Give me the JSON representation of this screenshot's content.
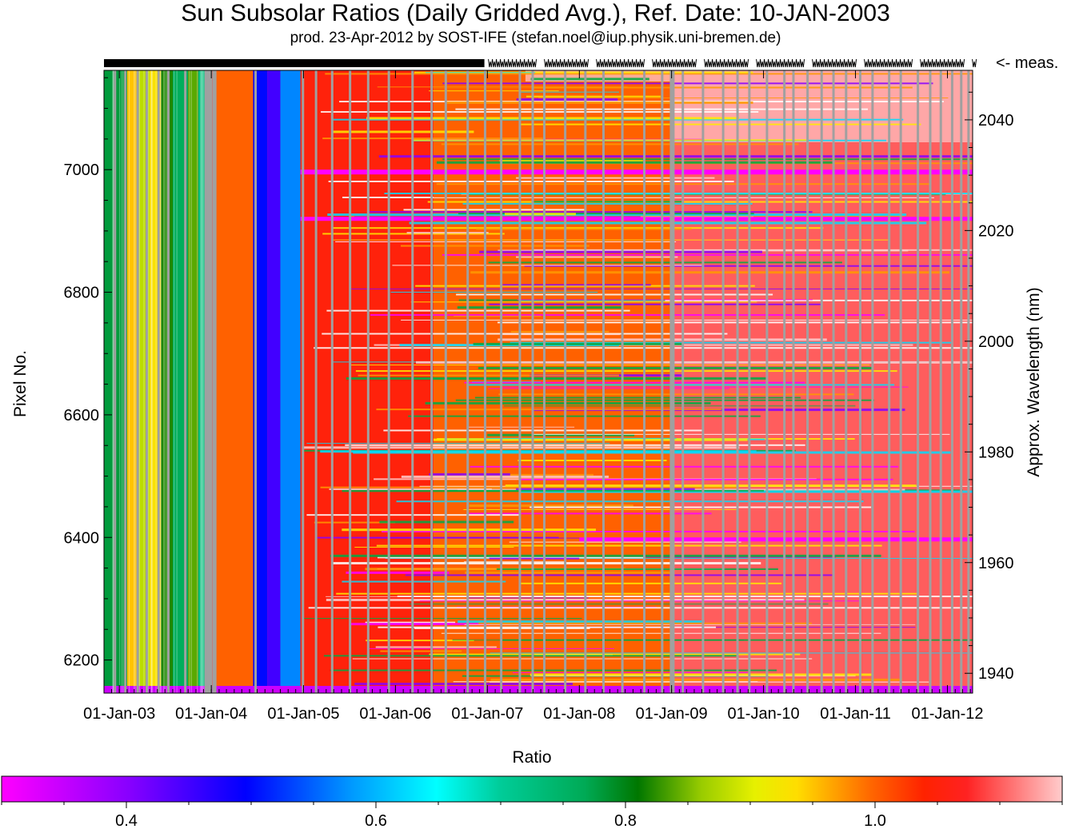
{
  "title": "Sun Subsolar Ratios (Daily Gridded Avg.), Ref. Date: 10-JAN-2003",
  "subtitle": "prod. 23-Apr-2012 by SOST-IFE (stefan.noel@iup.physik.uni-bremen.de)",
  "meas_label": "<- meas.",
  "chart_data": {
    "type": "heatmap",
    "xlabel": "",
    "ylabel": "Pixel No.",
    "y2label": "Approx. Wavelength (nm)",
    "x_ticks": [
      "01-Jan-03",
      "01-Jan-04",
      "01-Jan-05",
      "01-Jan-06",
      "01-Jan-07",
      "01-Jan-08",
      "01-Jan-09",
      "01-Jan-10",
      "01-Jan-11",
      "01-Jan-12"
    ],
    "x_range": [
      "2002-11-01",
      "2012-04-10"
    ],
    "y_ticks": [
      6200,
      6400,
      6600,
      6800,
      7000
    ],
    "y_range": [
      6146,
      7162
    ],
    "y2_ticks": [
      1940,
      1960,
      1980,
      2000,
      2020,
      2040
    ],
    "colorbar": {
      "label": "Ratio",
      "range": [
        0.3,
        1.15
      ],
      "ticks": [
        "0.4",
        "0.6",
        "0.8",
        "1.0"
      ],
      "tick_values": [
        0.4,
        0.6,
        0.8,
        1.0
      ]
    },
    "time_bands": [
      {
        "start": "2002-11-01",
        "end": "2003-02-01",
        "ratio": 0.78
      },
      {
        "start": "2003-02-01",
        "end": "2003-03-15",
        "ratio": 0.95
      },
      {
        "start": "2003-03-15",
        "end": "2003-05-01",
        "ratio": 0.88
      },
      {
        "start": "2003-05-01",
        "end": "2003-06-15",
        "ratio": 0.93
      },
      {
        "start": "2003-06-15",
        "end": "2003-08-01",
        "ratio": 0.82
      },
      {
        "start": "2003-08-01",
        "end": "2003-10-01",
        "ratio": 0.76
      },
      {
        "start": "2003-10-01",
        "end": "2003-11-10",
        "ratio": 0.84
      },
      {
        "start": "2003-11-10",
        "end": "2004-01-01",
        "ratio": 0.73
      },
      {
        "start": "2004-01-15",
        "end": "2004-06-15",
        "ratio": 1.0
      },
      {
        "start": "2004-06-15",
        "end": "2004-08-10",
        "ratio": 0.5
      },
      {
        "start": "2004-08-10",
        "end": "2004-10-01",
        "ratio": 0.45
      },
      {
        "start": "2004-10-01",
        "end": "2004-12-20",
        "ratio": 0.57
      },
      {
        "start": "2004-12-20",
        "end": "2006-06-01",
        "ratio": 1.05
      },
      {
        "start": "2006-06-01",
        "end": "2008-12-31",
        "ratio": 1.0
      },
      {
        "start": "2008-12-31",
        "end": "2012-04-10",
        "ratio": 1.1
      }
    ]
  }
}
